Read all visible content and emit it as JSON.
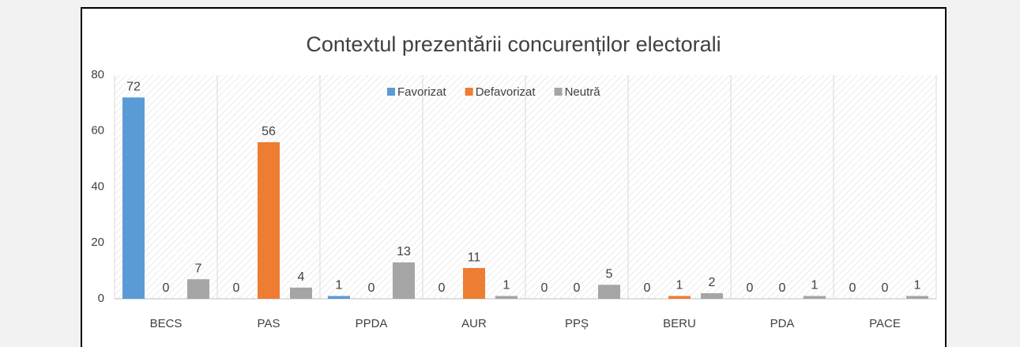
{
  "chart_data": {
    "type": "bar",
    "title": "Contextul prezentării concurenților electorali",
    "categories": [
      "BECS",
      "PAS",
      "PPDA",
      "AUR",
      "PPȘ",
      "BERU",
      "PDA",
      "PACE"
    ],
    "series": [
      {
        "name": "Favorizat",
        "color": "#5b9bd5",
        "values": [
          72,
          0,
          1,
          0,
          0,
          0,
          0,
          0
        ]
      },
      {
        "name": "Defavorizat",
        "color": "#ed7d31",
        "values": [
          0,
          56,
          0,
          11,
          0,
          1,
          0,
          0
        ]
      },
      {
        "name": "Neutră",
        "color": "#a5a5a5",
        "values": [
          7,
          4,
          13,
          1,
          5,
          2,
          1,
          1
        ]
      }
    ],
    "ylim": [
      0,
      80
    ],
    "yticks": [
      0,
      20,
      40,
      60,
      80
    ],
    "legend": "top"
  }
}
